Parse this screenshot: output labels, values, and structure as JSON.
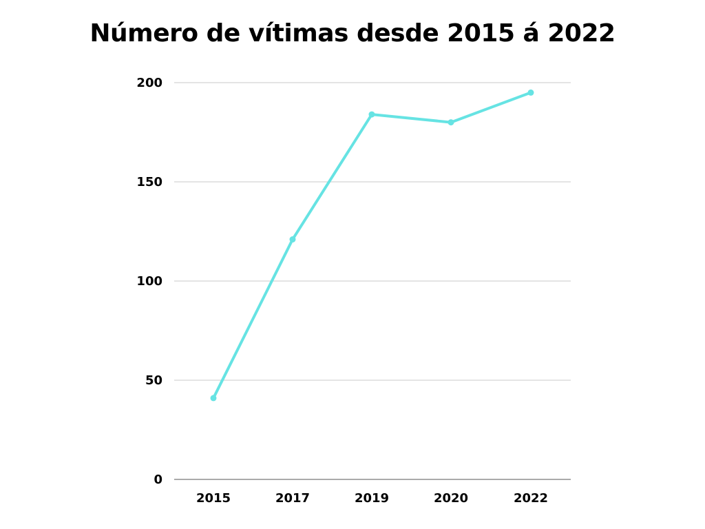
{
  "chart_data": {
    "type": "line",
    "title": "Número de vítimas desde 2015 á 2022",
    "xlabel": "",
    "ylabel": "",
    "categories": [
      "2015",
      "2017",
      "2019",
      "2020",
      "2022"
    ],
    "series": [
      {
        "values": [
          41,
          121,
          184,
          180,
          195
        ],
        "color": "#66e3e3"
      }
    ],
    "ylim": [
      0,
      200
    ],
    "yticks": [
      0,
      50,
      100,
      150,
      200
    ],
    "ytick_labels": [
      "0",
      "50",
      "100",
      "150",
      "200"
    ],
    "grid": true,
    "legend": "none"
  }
}
